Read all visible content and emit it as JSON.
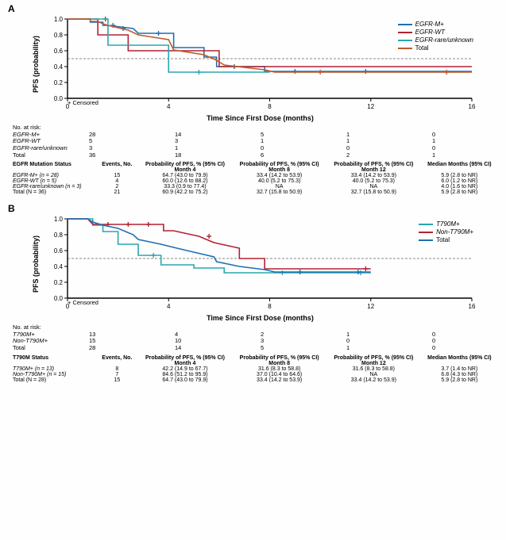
{
  "panelA": {
    "label": "A",
    "yAxis": "PFS (probability)",
    "xAxis": "Time Since First Dose (months)",
    "censoredText": "+ Censored",
    "xlim": [
      0,
      16
    ],
    "xticks": [
      0,
      4,
      8,
      12,
      16
    ],
    "ylim": [
      0,
      1.0
    ],
    "yticks": [
      0,
      0.2,
      0.4,
      0.6,
      0.8,
      1.0
    ],
    "refLine": 0.5,
    "colors": {
      "egfr_m": "#1f6fb2",
      "egfr_wt": "#b22234",
      "egfr_rare": "#2aa6b0",
      "total": "#c05a2a",
      "axis": "#000",
      "grid": "#888"
    },
    "legend": [
      {
        "key": "egfr_m",
        "label": "EGFR-M+"
      },
      {
        "key": "egfr_wt",
        "label": "EGFR-WT"
      },
      {
        "key": "egfr_rare",
        "label": "EGFR-rare/unknown"
      },
      {
        "key": "total",
        "label": "Total"
      }
    ],
    "series": {
      "egfr_m": [
        [
          0,
          1.0
        ],
        [
          0.9,
          1.0
        ],
        [
          0.9,
          0.96
        ],
        [
          1.4,
          0.96
        ],
        [
          1.4,
          0.92
        ],
        [
          1.6,
          0.92
        ],
        [
          2.6,
          0.88
        ],
        [
          2.8,
          0.82
        ],
        [
          4.2,
          0.82
        ],
        [
          4.2,
          0.64
        ],
        [
          5.4,
          0.64
        ],
        [
          5.4,
          0.52
        ],
        [
          5.9,
          0.52
        ],
        [
          5.9,
          0.4
        ],
        [
          7.8,
          0.4
        ],
        [
          7.8,
          0.34
        ],
        [
          12,
          0.34
        ],
        [
          16,
          0.34
        ]
      ],
      "egfr_wt": [
        [
          0,
          1.0
        ],
        [
          1.2,
          1.0
        ],
        [
          1.2,
          0.8
        ],
        [
          2.4,
          0.8
        ],
        [
          2.4,
          0.6
        ],
        [
          5.0,
          0.6
        ],
        [
          6.0,
          0.6
        ],
        [
          6.0,
          0.4
        ],
        [
          12,
          0.4
        ],
        [
          16,
          0.4
        ]
      ],
      "egfr_rare": [
        [
          0,
          1.0
        ],
        [
          1.6,
          1.0
        ],
        [
          1.6,
          0.67
        ],
        [
          4.0,
          0.67
        ],
        [
          4.0,
          0.33
        ],
        [
          8,
          0.33
        ]
      ],
      "total": [
        [
          0,
          1.0
        ],
        [
          0.9,
          1.0
        ],
        [
          0.9,
          0.97
        ],
        [
          1.2,
          0.97
        ],
        [
          1.4,
          0.94
        ],
        [
          1.6,
          0.92
        ],
        [
          2.4,
          0.86
        ],
        [
          2.8,
          0.8
        ],
        [
          4.0,
          0.74
        ],
        [
          4.2,
          0.61
        ],
        [
          5.4,
          0.55
        ],
        [
          5.9,
          0.48
        ],
        [
          6.2,
          0.42
        ],
        [
          7.8,
          0.36
        ],
        [
          8.2,
          0.33
        ],
        [
          12,
          0.33
        ],
        [
          16,
          0.33
        ]
      ]
    },
    "censorMarks": {
      "egfr_m": [
        [
          1.8,
          0.92
        ],
        [
          2.2,
          0.88
        ],
        [
          3.6,
          0.82
        ],
        [
          6.6,
          0.4
        ],
        [
          9.0,
          0.34
        ],
        [
          11.8,
          0.34
        ]
      ],
      "egfr_wt": [
        [
          1.5,
          1.0
        ]
      ],
      "egfr_rare": [
        [
          5.2,
          0.33
        ]
      ],
      "total": [
        [
          10.0,
          0.33
        ],
        [
          15.0,
          0.33
        ]
      ]
    },
    "risk": {
      "header": "No. at risk:",
      "rows": [
        {
          "label": "EGFR-M+",
          "vals": [
            "28",
            "14",
            "5",
            "1",
            "0"
          ]
        },
        {
          "label": "EGFR-WT",
          "vals": [
            "5",
            "3",
            "1",
            "1",
            "1"
          ]
        },
        {
          "label": "EGFR-rare/unknown",
          "vals": [
            "3",
            "1",
            "0",
            "0",
            "0"
          ]
        },
        {
          "label": "Total",
          "vals": [
            "36",
            "18",
            "6",
            "2",
            "1"
          ]
        }
      ]
    },
    "stats": {
      "headers": [
        "EGFR Mutation Status",
        "Events, No.",
        "Probability of PFS, % (95% CI) Month 4",
        "Probability of PFS, % (95% CI) Month 8",
        "Probability of PFS, % (95% CI) Month 12",
        "Median Months (95% CI)"
      ],
      "rows": [
        {
          "label": "EGFR-M+ (n = 28)",
          "c": [
            "15",
            "64.7 (43.0 to 79.9)",
            "33.4 (14.2 to 53.9)",
            "33.4 (14.2 to 53.9)",
            "5.9 (2.8 to NR)"
          ]
        },
        {
          "label": "EGFR-WT (n = 5)",
          "c": [
            "4",
            "60.0 (12.6 to 88.2)",
            "40.0 (5.2 to 75.3)",
            "40.0 (5.2 to 75.3)",
            "6.0 (1.2 to NR)"
          ]
        },
        {
          "label": "EGFR-rare/unknown  (n = 3)",
          "c": [
            "2",
            "33.3 (0.9 to 77.4)",
            "NA",
            "NA",
            "4.0 (1.6 to NR)"
          ]
        },
        {
          "label": "Total (N = 36)",
          "c": [
            "21",
            "60.9 (42.2 to 75.2)",
            "32.7 (15.8 to 50.9)",
            "32.7 (15.8 to 50.9)",
            "5.9 (2.8 to NR)"
          ]
        }
      ]
    }
  },
  "panelB": {
    "label": "B",
    "yAxis": "PFS (probability)",
    "xAxis": "Time Since First Dose (months)",
    "censoredText": "+ Censored",
    "xlim": [
      0,
      16
    ],
    "xticks": [
      0,
      4,
      8,
      12,
      16
    ],
    "ylim": [
      0,
      1.0
    ],
    "yticks": [
      0,
      0.2,
      0.4,
      0.6,
      0.8,
      1.0
    ],
    "refLine": 0.5,
    "colors": {
      "t790m": "#2aa6b0",
      "non_t790m": "#b22234",
      "total": "#1f6fb2",
      "axis": "#000",
      "grid": "#888"
    },
    "legend": [
      {
        "key": "t790m",
        "label": "T790M+"
      },
      {
        "key": "non_t790m",
        "label": "Non-T790M+"
      },
      {
        "key": "total",
        "label": "Total"
      }
    ],
    "series": {
      "t790m": [
        [
          0,
          1.0
        ],
        [
          1.0,
          1.0
        ],
        [
          1.0,
          0.92
        ],
        [
          1.4,
          0.92
        ],
        [
          1.4,
          0.84
        ],
        [
          2.0,
          0.84
        ],
        [
          2.0,
          0.68
        ],
        [
          2.8,
          0.68
        ],
        [
          2.8,
          0.54
        ],
        [
          3.7,
          0.54
        ],
        [
          3.7,
          0.42
        ],
        [
          5.0,
          0.42
        ],
        [
          5.0,
          0.38
        ],
        [
          6.2,
          0.38
        ],
        [
          6.2,
          0.32
        ],
        [
          12,
          0.32
        ]
      ],
      "non_t790m": [
        [
          0,
          1.0
        ],
        [
          0.8,
          1.0
        ],
        [
          1.0,
          0.93
        ],
        [
          3.8,
          0.93
        ],
        [
          3.8,
          0.85
        ],
        [
          4.2,
          0.85
        ],
        [
          5.2,
          0.78
        ],
        [
          5.8,
          0.7
        ],
        [
          6.8,
          0.63
        ],
        [
          6.8,
          0.5
        ],
        [
          7.8,
          0.5
        ],
        [
          7.8,
          0.37
        ],
        [
          12,
          0.37
        ]
      ],
      "total": [
        [
          0,
          1.0
        ],
        [
          0.8,
          1.0
        ],
        [
          1.0,
          0.96
        ],
        [
          1.4,
          0.92
        ],
        [
          2.0,
          0.88
        ],
        [
          2.6,
          0.8
        ],
        [
          2.8,
          0.74
        ],
        [
          3.7,
          0.68
        ],
        [
          4.2,
          0.64
        ],
        [
          5.0,
          0.58
        ],
        [
          5.8,
          0.52
        ],
        [
          5.9,
          0.46
        ],
        [
          6.8,
          0.4
        ],
        [
          7.8,
          0.36
        ],
        [
          8.2,
          0.33
        ],
        [
          12,
          0.33
        ]
      ]
    },
    "censorMarks": {
      "t790m": [
        [
          3.4,
          0.54
        ],
        [
          8.5,
          0.32
        ],
        [
          11.6,
          0.32
        ]
      ],
      "non_t790m": [
        [
          1.6,
          0.93
        ],
        [
          2.4,
          0.93
        ],
        [
          3.2,
          0.93
        ],
        [
          5.6,
          0.78
        ],
        [
          11.8,
          0.37
        ]
      ],
      "total": [
        [
          9.2,
          0.33
        ],
        [
          11.5,
          0.33
        ]
      ]
    },
    "risk": {
      "header": "No. at risk:",
      "rows": [
        {
          "label": "T790M+",
          "vals": [
            "13",
            "4",
            "2",
            "1",
            "0"
          ]
        },
        {
          "label": "Non-T790M+",
          "vals": [
            "15",
            "10",
            "3",
            "0",
            "0"
          ]
        },
        {
          "label": "Total",
          "vals": [
            "28",
            "14",
            "5",
            "1",
            "0"
          ]
        }
      ]
    },
    "stats": {
      "headers": [
        "T790M Status",
        "Events, No.",
        "Probability of PFS, % (95% CI) Month 4",
        "Probability of PFS, % (95% CI) Month 8",
        "Probability of PFS, % (95% CI) Month 12",
        "Median Months (95% CI)"
      ],
      "rows": [
        {
          "label": "T790M+ (n = 13)",
          "c": [
            "8",
            "42.2 (14.9 to 67.7)",
            "31.6 (8.3 to 58.8)",
            "31.6 (8.3 to 58.8)",
            "3.7 (1.4 to NR)"
          ]
        },
        {
          "label": "Non-T790M+ (n = 15)",
          "c": [
            "7",
            "84.6 (51.2 to 95.9)",
            "37.0 (10.4 to 64.6)",
            "NA",
            "6.8 (4.3 to NR)"
          ]
        },
        {
          "label": "Total (N = 28)",
          "c": [
            "15",
            "64.7 (43.0 to 79.9)",
            "33.4 (14.2 to 53.9)",
            "33.4 (14.2 to 53.9)",
            "5.9 (2.8 to NR)"
          ]
        }
      ]
    }
  }
}
